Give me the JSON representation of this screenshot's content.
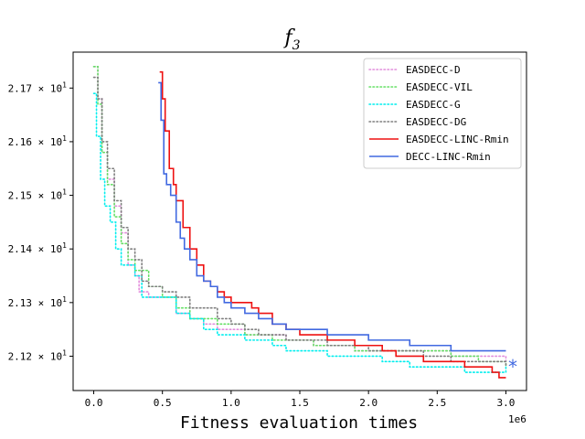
{
  "chart_data": {
    "type": "line",
    "title_base": "f",
    "title_sub": "3",
    "xlabel": "Fitness evaluation times",
    "x_multiplier_label": "1e6",
    "xlim": [
      -0.15,
      3.15
    ],
    "ylim": [
      2.1136,
      2.1767
    ],
    "x_ticks": [
      0.0,
      0.5,
      1.0,
      1.5,
      2.0,
      2.5,
      3.0
    ],
    "x_tick_labels": [
      "0.0",
      "0.5",
      "1.0",
      "1.5",
      "2.0",
      "2.5",
      "3.0"
    ],
    "y_ticks": [
      2.12,
      2.13,
      2.14,
      2.15,
      2.16,
      2.17
    ],
    "y_tick_labels": [
      "2.12",
      "2.13",
      "2.14",
      "2.15",
      "2.16",
      "2.17"
    ],
    "y_tick_suffix": "× 10",
    "y_tick_exponent": "1",
    "legend_position": "top-right",
    "series": [
      {
        "name": "EASDECC-D",
        "color": "#e28ddc",
        "style": "dotted",
        "x": [
          0.0,
          0.03,
          0.06,
          0.1,
          0.15,
          0.2,
          0.25,
          0.3,
          0.33,
          0.4,
          0.5,
          0.6,
          0.7,
          0.8,
          0.9,
          1.0,
          1.1,
          1.2,
          1.3,
          1.4,
          1.5,
          1.6,
          1.7,
          1.8,
          1.9,
          2.0,
          2.2,
          2.4,
          2.6,
          2.8,
          3.0
        ],
        "values": [
          2.174,
          2.168,
          2.158,
          2.153,
          2.148,
          2.143,
          2.137,
          2.135,
          2.132,
          2.131,
          2.131,
          2.128,
          2.127,
          2.126,
          2.125,
          2.125,
          2.124,
          2.124,
          2.124,
          2.123,
          2.123,
          2.122,
          2.122,
          2.122,
          2.121,
          2.121,
          2.121,
          2.121,
          2.12,
          2.12,
          2.119
        ]
      },
      {
        "name": "EASDECC-VIL",
        "color": "#66e066",
        "style": "dotted",
        "x": [
          0.0,
          0.03,
          0.06,
          0.1,
          0.15,
          0.2,
          0.25,
          0.3,
          0.4,
          0.5,
          0.6,
          0.7,
          0.8,
          0.9,
          1.0,
          1.1,
          1.2,
          1.3,
          1.4,
          1.5,
          1.6,
          1.7,
          1.8,
          1.9,
          2.0,
          2.2,
          2.4,
          2.6,
          2.8,
          3.0
        ],
        "values": [
          2.174,
          2.167,
          2.158,
          2.152,
          2.146,
          2.141,
          2.138,
          2.136,
          2.133,
          2.131,
          2.129,
          2.127,
          2.127,
          2.126,
          2.126,
          2.124,
          2.124,
          2.123,
          2.123,
          2.123,
          2.122,
          2.122,
          2.122,
          2.121,
          2.121,
          2.121,
          2.121,
          2.12,
          2.119,
          2.118
        ]
      },
      {
        "name": "EASDECC-G",
        "color": "#00eeee",
        "style": "dotted",
        "x": [
          0.0,
          0.02,
          0.05,
          0.08,
          0.12,
          0.16,
          0.2,
          0.25,
          0.3,
          0.35,
          0.4,
          0.5,
          0.6,
          0.7,
          0.8,
          0.9,
          1.0,
          1.1,
          1.2,
          1.3,
          1.4,
          1.5,
          1.7,
          1.9,
          2.1,
          2.3,
          2.5,
          2.7,
          2.9,
          3.0
        ],
        "values": [
          2.169,
          2.161,
          2.153,
          2.148,
          2.145,
          2.14,
          2.137,
          2.137,
          2.135,
          2.131,
          2.131,
          2.131,
          2.128,
          2.127,
          2.125,
          2.124,
          2.124,
          2.123,
          2.123,
          2.122,
          2.121,
          2.121,
          2.12,
          2.12,
          2.119,
          2.118,
          2.118,
          2.117,
          2.117,
          2.118
        ]
      },
      {
        "name": "EASDECC-DG",
        "color": "#7f7f7f",
        "style": "dotted",
        "x": [
          0.0,
          0.03,
          0.06,
          0.1,
          0.15,
          0.2,
          0.25,
          0.3,
          0.35,
          0.4,
          0.5,
          0.6,
          0.7,
          0.8,
          0.9,
          1.0,
          1.1,
          1.2,
          1.3,
          1.4,
          1.5,
          1.6,
          1.7,
          1.8,
          1.9,
          2.0,
          2.2,
          2.4,
          2.6,
          2.8,
          3.0
        ],
        "values": [
          2.172,
          2.168,
          2.16,
          2.155,
          2.149,
          2.144,
          2.14,
          2.138,
          2.134,
          2.133,
          2.132,
          2.131,
          2.129,
          2.129,
          2.127,
          2.126,
          2.125,
          2.124,
          2.124,
          2.123,
          2.123,
          2.123,
          2.122,
          2.122,
          2.122,
          2.121,
          2.121,
          2.12,
          2.119,
          2.119,
          2.118
        ]
      },
      {
        "name": "EASDECC-LINC-Rmin",
        "color": "#ee1111",
        "style": "solid",
        "x": [
          0.48,
          0.5,
          0.52,
          0.55,
          0.58,
          0.6,
          0.65,
          0.7,
          0.75,
          0.8,
          0.85,
          0.9,
          0.95,
          1.0,
          1.1,
          1.15,
          1.2,
          1.3,
          1.4,
          1.5,
          1.6,
          1.7,
          1.8,
          1.9,
          2.0,
          2.1,
          2.2,
          2.3,
          2.4,
          2.5,
          2.6,
          2.7,
          2.8,
          2.9,
          2.95,
          3.0
        ],
        "values": [
          2.173,
          2.168,
          2.162,
          2.155,
          2.152,
          2.149,
          2.144,
          2.14,
          2.137,
          2.134,
          2.133,
          2.132,
          2.131,
          2.13,
          2.13,
          2.129,
          2.128,
          2.126,
          2.125,
          2.124,
          2.124,
          2.123,
          2.123,
          2.122,
          2.122,
          2.121,
          2.12,
          2.12,
          2.119,
          2.119,
          2.119,
          2.118,
          2.118,
          2.117,
          2.116,
          2.116
        ]
      },
      {
        "name": "DECC-LINC-Rmin",
        "color": "#4169e1",
        "style": "solid",
        "x": [
          0.47,
          0.49,
          0.51,
          0.53,
          0.56,
          0.6,
          0.63,
          0.66,
          0.7,
          0.75,
          0.8,
          0.85,
          0.9,
          0.95,
          1.0,
          1.1,
          1.2,
          1.3,
          1.4,
          1.5,
          1.6,
          1.7,
          1.8,
          1.9,
          2.0,
          2.1,
          2.2,
          2.3,
          2.4,
          2.5,
          2.6,
          2.7,
          2.8,
          2.9,
          3.0
        ],
        "values": [
          2.171,
          2.164,
          2.154,
          2.152,
          2.15,
          2.145,
          2.142,
          2.14,
          2.138,
          2.135,
          2.134,
          2.133,
          2.131,
          2.13,
          2.129,
          2.128,
          2.127,
          2.126,
          2.125,
          2.125,
          2.125,
          2.124,
          2.124,
          2.124,
          2.123,
          2.123,
          2.123,
          2.122,
          2.122,
          2.122,
          2.121,
          2.121,
          2.121,
          2.121,
          2.121
        ]
      }
    ],
    "marker": {
      "symbol": "*",
      "color": "#4169e1",
      "x": 3.05,
      "y": 2.1182
    }
  }
}
